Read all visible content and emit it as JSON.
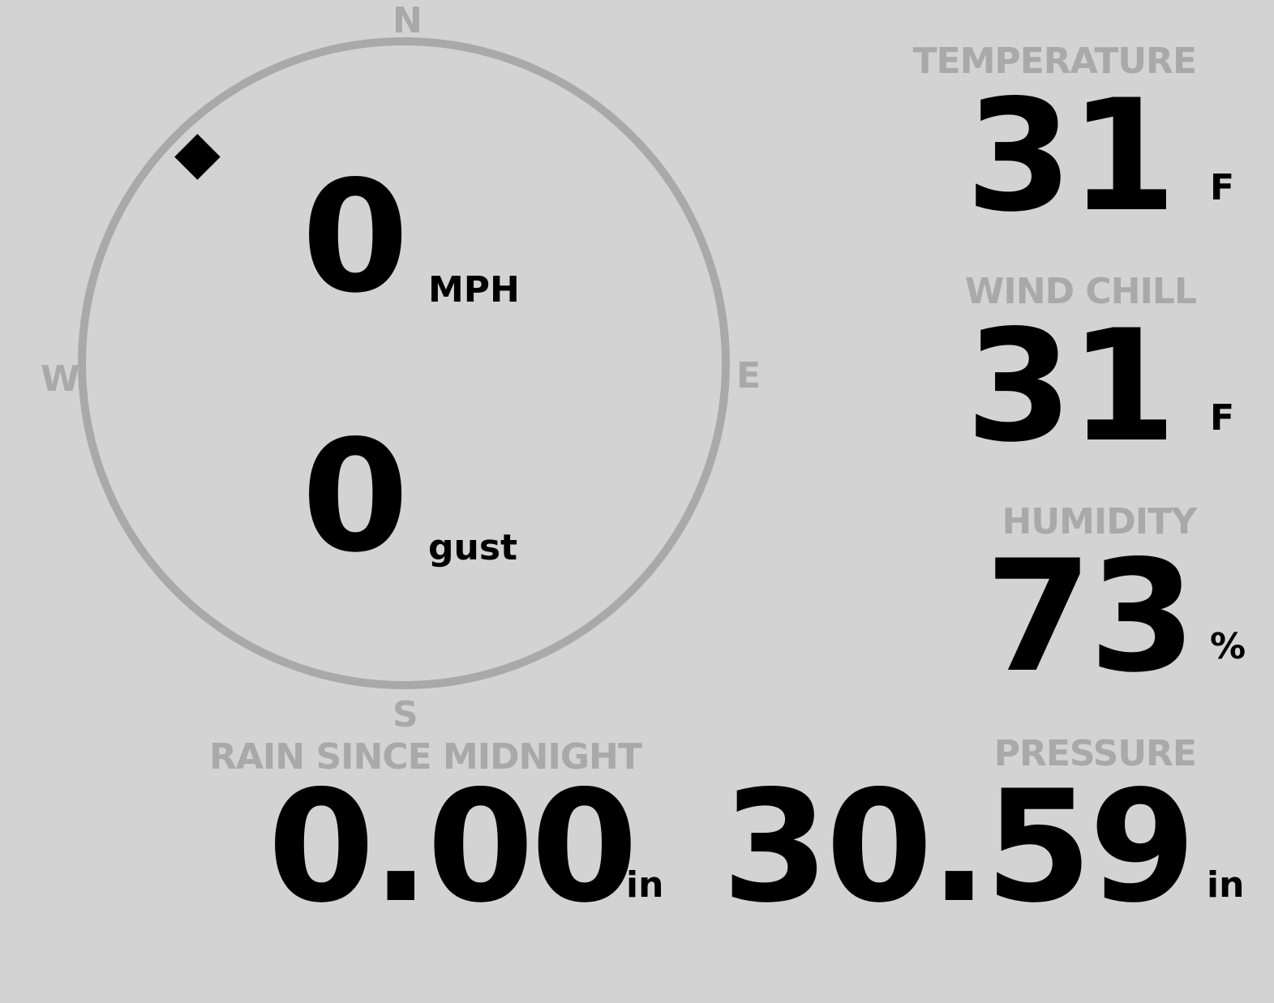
{
  "compass": {
    "north": "N",
    "east": "E",
    "south": "S",
    "west": "W",
    "direction_degrees": 315
  },
  "wind": {
    "speed": "0",
    "speed_unit": "MPH",
    "gust": "0",
    "gust_unit": "gust"
  },
  "temperature": {
    "label": "TEMPERATURE",
    "value": "31",
    "unit": "F"
  },
  "wind_chill": {
    "label": "WIND CHILL",
    "value": "31",
    "unit": "F"
  },
  "humidity": {
    "label": "HUMIDITY",
    "value": "73",
    "unit": "%"
  },
  "rain": {
    "label": "RAIN SINCE MIDNIGHT",
    "value": "0.00",
    "unit": "in"
  },
  "pressure": {
    "label": "PRESSURE",
    "value": "30.59",
    "unit": "in"
  },
  "colors": {
    "background": "#d3d3d3",
    "label": "#a9a9a9",
    "value": "#000000"
  }
}
